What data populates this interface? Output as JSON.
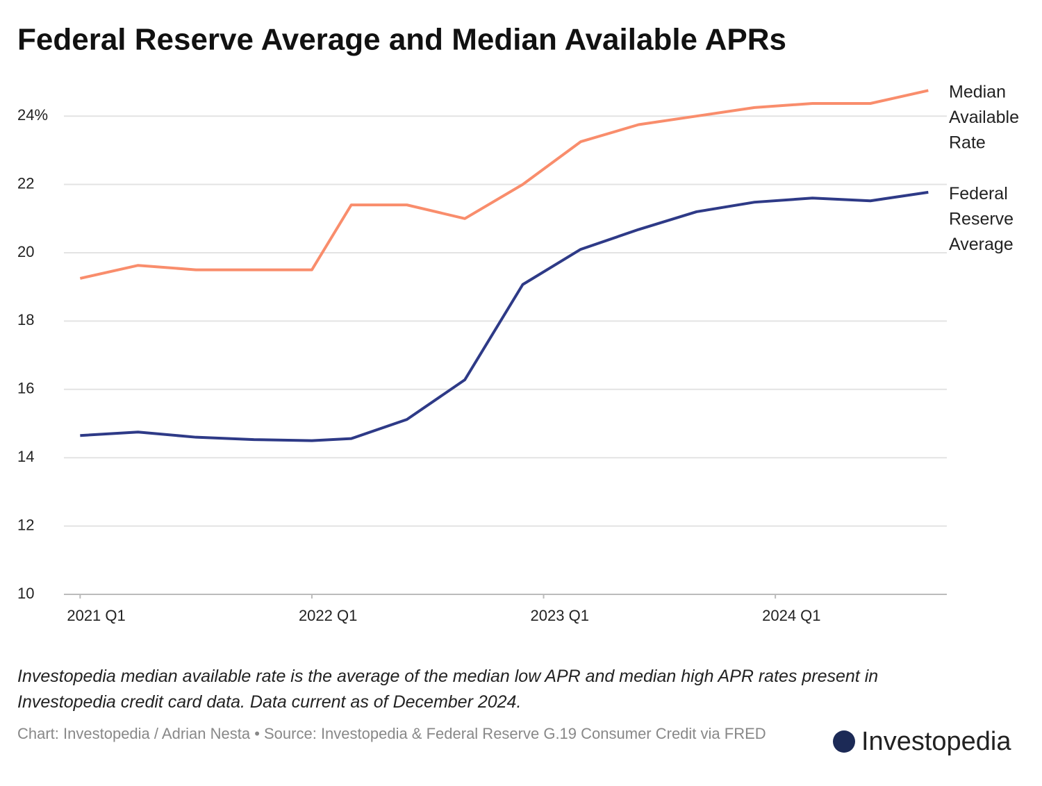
{
  "chart_data": {
    "type": "line",
    "title": "Federal Reserve Average and Median Available APRs",
    "series": [
      {
        "name": "Median Available Rate",
        "color": "#f98d6c",
        "x": [
          2021.0,
          2021.25,
          2021.5,
          2021.75,
          2022.0,
          2022.17,
          2022.41,
          2022.66,
          2022.91,
          2023.16,
          2023.41,
          2023.66,
          2023.91,
          2024.16,
          2024.41,
          2024.66
        ],
        "values": [
          19.25,
          19.63,
          19.5,
          19.5,
          19.5,
          21.4,
          21.4,
          21.0,
          22.0,
          23.25,
          23.75,
          24.0,
          24.25,
          24.37,
          24.37,
          24.75
        ]
      },
      {
        "name": "Federal Reserve Average",
        "color": "#2e3a87",
        "x": [
          2021.0,
          2021.25,
          2021.5,
          2021.75,
          2022.0,
          2022.17,
          2022.41,
          2022.66,
          2022.91,
          2023.16,
          2023.41,
          2023.66,
          2023.91,
          2024.16,
          2024.41,
          2024.66
        ],
        "values": [
          14.65,
          14.75,
          14.6,
          14.53,
          14.5,
          14.56,
          15.12,
          16.28,
          19.07,
          20.1,
          20.68,
          21.2,
          21.48,
          21.6,
          21.52,
          21.77
        ]
      }
    ],
    "xlim": [
      2020.93,
      2024.74
    ],
    "xticks": [
      {
        "value": 2021,
        "label": "2021 Q1"
      },
      {
        "value": 2022,
        "label": "2022 Q1"
      },
      {
        "value": 2023,
        "label": "2023 Q1"
      },
      {
        "value": 2024,
        "label": "2024 Q1"
      }
    ],
    "ylim": [
      10,
      25
    ],
    "yticks": [
      10,
      12,
      14,
      16,
      18,
      20,
      22,
      {
        "value": 24,
        "label": "24%"
      }
    ],
    "grid": true,
    "note": "Investopedia median available rate is the average of the median low APR and median high APR rates present in Investopedia credit card data. Data current as of December 2024.",
    "source": "Chart: Investopedia / Adrian Nesta • Source: Investopedia & Federal Reserve G.19 Consumer Credit via FRED",
    "logo": "Investopedia"
  }
}
